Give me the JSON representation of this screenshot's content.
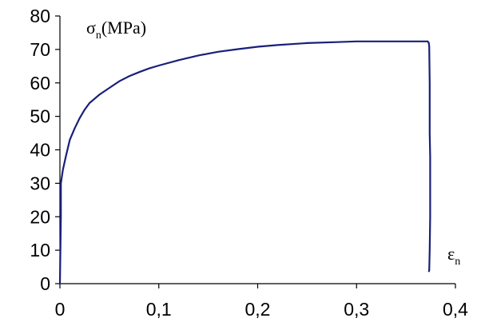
{
  "chart_data": {
    "type": "line",
    "title": "",
    "ylabel": {
      "symbol": "σ",
      "sub": "n",
      "unit": "(MPa)"
    },
    "xlabel": {
      "symbol": "ε",
      "sub": "n"
    },
    "xlim": [
      0,
      0.4
    ],
    "ylim": [
      0,
      80
    ],
    "x_ticks": [
      "0",
      "0,1",
      "0,2",
      "0,3",
      "0,4"
    ],
    "y_ticks": [
      "0",
      "10",
      "20",
      "30",
      "40",
      "50",
      "60",
      "70",
      "80"
    ],
    "grid": false,
    "legend": "none",
    "colors": {
      "series": "#1a1f7a",
      "axis": "#000000"
    },
    "series": [
      {
        "x": [
          0,
          0.0005,
          0.001,
          0.001,
          0.003,
          0.006,
          0.01,
          0.015,
          0.02,
          0.025,
          0.03,
          0.04,
          0.05,
          0.06,
          0.07,
          0.08,
          0.09,
          0.1,
          0.12,
          0.14,
          0.16,
          0.18,
          0.2,
          0.22,
          0.25,
          0.28,
          0.3,
          0.32,
          0.34,
          0.36,
          0.372,
          0.373,
          0.3735,
          0.374,
          0.374,
          0.3745,
          0.3745,
          0.374,
          0.3735,
          0.373
        ],
        "y": [
          0,
          10,
          20,
          30,
          34,
          38,
          43,
          46.5,
          49.5,
          52,
          54,
          56.5,
          58.5,
          60.5,
          62,
          63.2,
          64.3,
          65.2,
          66.8,
          68.2,
          69.3,
          70.1,
          70.8,
          71.3,
          71.9,
          72.2,
          72.4,
          72.4,
          72.4,
          72.4,
          72.4,
          72,
          71,
          60,
          45,
          38,
          20,
          10,
          4,
          3.5
        ]
      }
    ]
  }
}
